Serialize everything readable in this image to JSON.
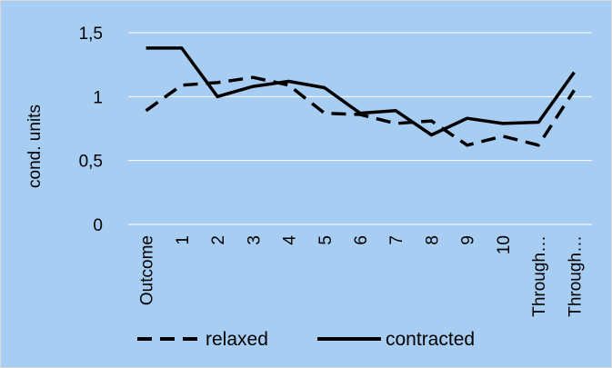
{
  "chart_data": {
    "type": "line",
    "categories": [
      "Outcome",
      "1",
      "2",
      "3",
      "4",
      "5",
      "6",
      "7",
      "8",
      "9",
      "10",
      "Through…",
      "Through…"
    ],
    "series": [
      {
        "name": "relaxed",
        "style": "dashed",
        "color": "#000000",
        "values": [
          0.89,
          1.09,
          1.11,
          1.15,
          1.09,
          0.87,
          0.86,
          0.79,
          0.81,
          0.62,
          0.69,
          0.62,
          1.05
        ]
      },
      {
        "name": "contracted",
        "style": "solid",
        "color": "#000000",
        "values": [
          1.38,
          1.38,
          1.0,
          1.08,
          1.12,
          1.07,
          0.87,
          0.89,
          0.7,
          0.83,
          0.79,
          0.8,
          1.19
        ]
      }
    ],
    "title": "",
    "xlabel": "",
    "ylabel": "cond. units",
    "ylim": [
      0,
      1.5
    ],
    "yticks": [
      0,
      0.5,
      1,
      1.5
    ],
    "ytick_labels": [
      "0",
      "0,5",
      "1",
      "1,5"
    ],
    "grid": true,
    "legend": "bottom",
    "background_color": "#a8cdf2",
    "grid_color": "#ffffff"
  }
}
